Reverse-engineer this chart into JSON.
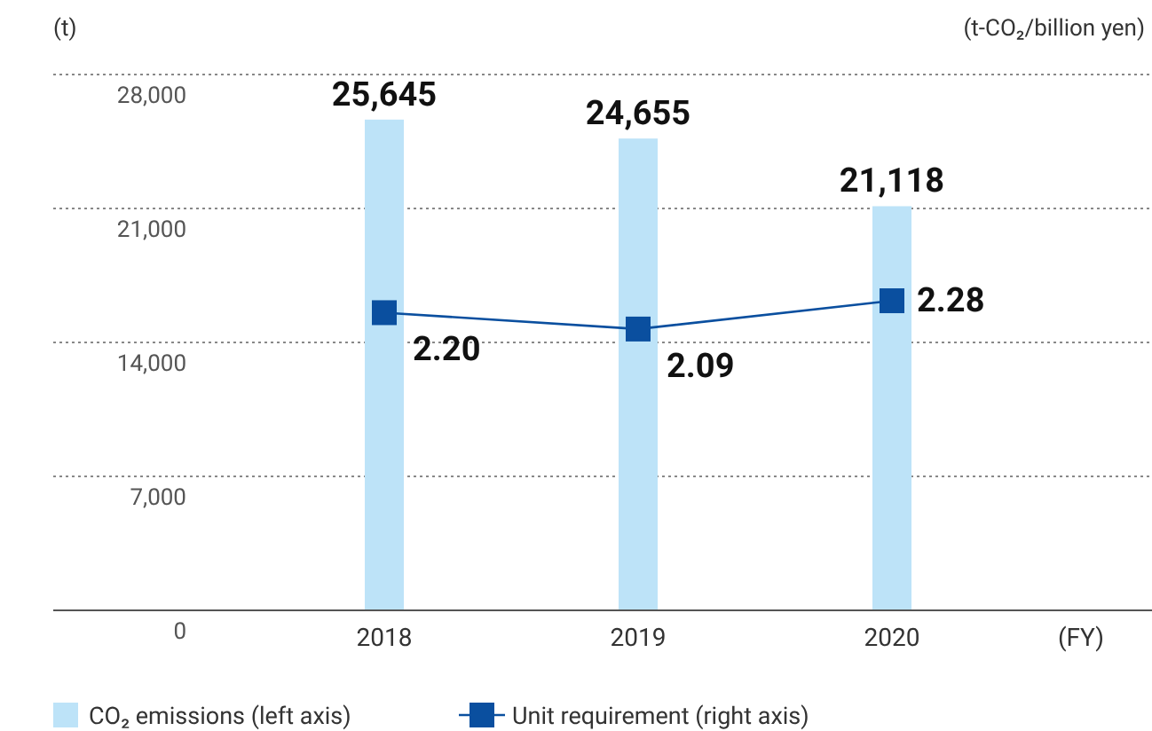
{
  "chart_data": {
    "type": "bar",
    "ylabel": "(t)",
    "y2label": "(t-CO₂/billion yen)",
    "xlabel": "(FY)",
    "categories": [
      "2018",
      "2019",
      "2020"
    ],
    "series": [
      {
        "name": "CO₂ emissions (left axis)",
        "color": "#bde3f8",
        "values": [
          25645,
          24655,
          21118
        ],
        "value_labels": [
          "25,645",
          "24,655",
          "21,118"
        ]
      },
      {
        "name": "Unit requirement (right axis)",
        "type": "line",
        "axis": "y2",
        "color": "#0a4f9f",
        "marker": "square",
        "values": [
          2.2,
          2.09,
          2.28
        ],
        "value_labels": [
          "2.20",
          "2.09",
          "2.28"
        ]
      }
    ],
    "ylim": [
      0,
      28000
    ],
    "yticks": [
      {
        "value": 0,
        "label": "0"
      },
      {
        "value": 7000,
        "label": "7,000"
      },
      {
        "value": 14000,
        "label": "14,000"
      },
      {
        "value": 21000,
        "label": "21,000"
      },
      {
        "value": 28000,
        "label": "28,000"
      }
    ],
    "y2lim": [
      0.2,
      3.8
    ],
    "grid": "y",
    "legend": "bottom"
  }
}
